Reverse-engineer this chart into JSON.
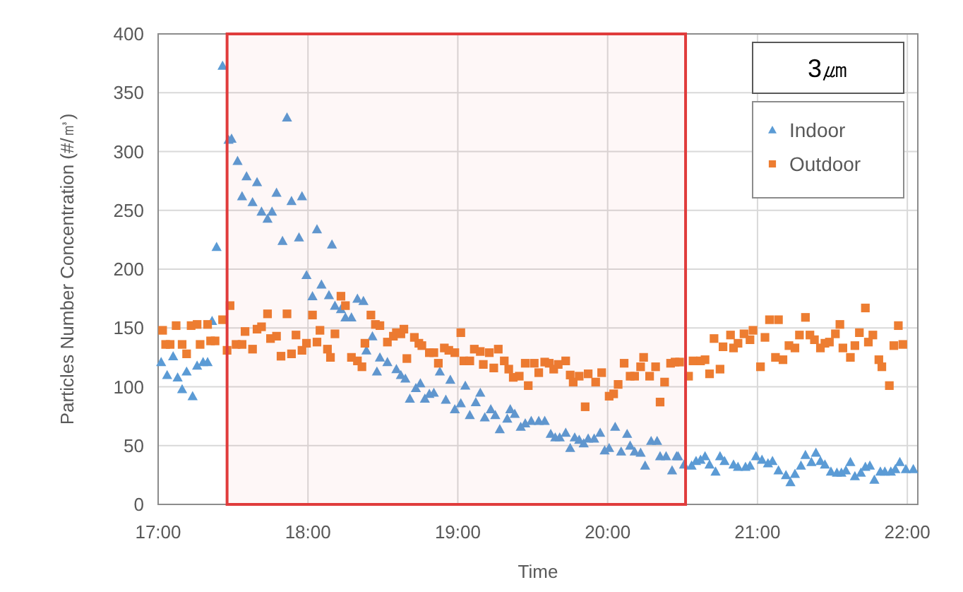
{
  "chart_data": {
    "type": "scatter",
    "xlabel": "Time",
    "ylabel": "Particles Number Concentration (#/㎥)",
    "legend_title": "3㎛",
    "legend": "top right",
    "grid": true,
    "xlim": [
      17,
      22.07
    ],
    "xticks": [
      {
        "value": 17,
        "label": "17:00"
      },
      {
        "value": 18,
        "label": "18:00"
      },
      {
        "value": 19,
        "label": "19:00"
      },
      {
        "value": 20,
        "label": "20:00"
      },
      {
        "value": 21,
        "label": "21:00"
      },
      {
        "value": 22,
        "label": "22:00"
      }
    ],
    "ylim": [
      0,
      400
    ],
    "yticks": [
      0,
      50,
      100,
      150,
      200,
      250,
      300,
      350,
      400
    ],
    "bands": [
      {
        "axis": "x",
        "from": 17.46,
        "to": 20.52,
        "color": "#e03c3c"
      }
    ],
    "series": [
      {
        "name": "Indoor",
        "color": "#5b9bd5",
        "marker": "triangle",
        "x": [
          17.02,
          17.06,
          17.1,
          17.13,
          17.16,
          17.19,
          17.23,
          17.26,
          17.3,
          17.33,
          17.36,
          17.39,
          17.43,
          17.47,
          17.49,
          17.53,
          17.56,
          17.59,
          17.63,
          17.66,
          17.69,
          17.73,
          17.76,
          17.79,
          17.83,
          17.86,
          17.89,
          17.94,
          17.96,
          17.99,
          18.03,
          18.06,
          18.09,
          18.14,
          18.16,
          18.18,
          18.22,
          18.25,
          18.29,
          18.33,
          18.37,
          18.39,
          18.43,
          18.46,
          18.48,
          18.53,
          18.59,
          18.62,
          18.65,
          18.68,
          18.72,
          18.75,
          18.78,
          18.81,
          18.84,
          18.88,
          18.92,
          18.95,
          18.98,
          19.02,
          19.05,
          19.08,
          19.12,
          19.15,
          19.18,
          19.22,
          19.25,
          19.28,
          19.33,
          19.35,
          19.38,
          19.42,
          19.45,
          19.49,
          19.54,
          19.58,
          19.62,
          19.65,
          19.68,
          19.72,
          19.75,
          19.78,
          19.81,
          19.84,
          19.87,
          19.91,
          19.95,
          19.98,
          20.01,
          20.05,
          20.09,
          20.13,
          20.15,
          20.18,
          20.22,
          20.25,
          20.29,
          20.33,
          20.35,
          20.39,
          20.43,
          20.46,
          20.47,
          20.51,
          20.56,
          20.59,
          20.62,
          20.65,
          20.68,
          20.72,
          20.75,
          20.78,
          20.84,
          20.87,
          20.92,
          20.95,
          20.99,
          21.03,
          21.07,
          21.1,
          21.14,
          21.19,
          21.22,
          21.25,
          21.29,
          21.32,
          21.36,
          21.39,
          21.42,
          21.45,
          21.49,
          21.53,
          21.56,
          21.59,
          21.62,
          21.65,
          21.69,
          21.72,
          21.75,
          21.78,
          21.82,
          21.85,
          21.89,
          21.92,
          21.95,
          21.99,
          22.04
        ],
        "values": [
          121,
          110,
          126,
          108,
          98,
          113,
          92,
          118,
          121,
          121,
          156,
          219,
          373,
          310,
          311,
          292,
          262,
          279,
          257,
          274,
          249,
          243,
          249,
          265,
          224,
          329,
          258,
          227,
          262,
          195,
          177,
          234,
          187,
          178,
          221,
          169,
          166,
          159,
          159,
          175,
          173,
          131,
          143,
          113,
          125,
          121,
          115,
          110,
          107,
          90,
          99,
          103,
          90,
          94,
          95,
          113,
          89,
          106,
          81,
          86,
          101,
          76,
          87,
          95,
          74,
          81,
          76,
          64,
          73,
          81,
          77,
          66,
          69,
          71,
          71,
          71,
          60,
          57,
          57,
          61,
          48,
          57,
          55,
          52,
          56,
          56,
          61,
          46,
          48,
          66,
          45,
          60,
          50,
          45,
          44,
          33,
          54,
          54,
          41,
          41,
          29,
          41,
          41,
          34,
          33,
          37,
          38,
          41,
          34,
          28,
          41,
          37,
          34,
          32,
          32,
          33,
          41,
          38,
          35,
          37,
          29,
          25,
          19,
          26,
          33,
          42,
          36,
          44,
          37,
          34,
          28,
          27,
          27,
          29,
          36,
          24,
          27,
          32,
          33,
          21,
          28,
          28,
          28,
          30,
          36,
          30,
          30
        ]
      },
      {
        "name": "Outdoor",
        "color": "#ed7d31",
        "marker": "square",
        "x": [
          17.03,
          17.05,
          17.08,
          17.12,
          17.16,
          17.19,
          17.22,
          17.26,
          17.28,
          17.33,
          17.35,
          17.38,
          17.43,
          17.46,
          17.48,
          17.52,
          17.56,
          17.58,
          17.63,
          17.66,
          17.69,
          17.73,
          17.75,
          17.79,
          17.82,
          17.86,
          17.89,
          17.92,
          17.96,
          17.99,
          18.03,
          18.06,
          18.08,
          18.13,
          18.15,
          18.18,
          18.22,
          18.25,
          18.29,
          18.33,
          18.36,
          18.38,
          18.42,
          18.45,
          18.48,
          18.53,
          18.57,
          18.59,
          18.62,
          18.64,
          18.66,
          18.71,
          18.74,
          18.76,
          18.81,
          18.84,
          18.87,
          18.91,
          18.94,
          18.98,
          19.02,
          19.04,
          19.08,
          19.11,
          19.15,
          19.17,
          19.21,
          19.24,
          19.27,
          19.31,
          19.34,
          19.37,
          19.41,
          19.45,
          19.47,
          19.51,
          19.54,
          19.58,
          19.61,
          19.64,
          19.67,
          19.72,
          19.75,
          19.77,
          19.81,
          19.85,
          19.87,
          19.92,
          19.96,
          20.01,
          20.04,
          20.07,
          20.11,
          20.15,
          20.18,
          20.22,
          20.24,
          20.28,
          20.32,
          20.35,
          20.38,
          20.42,
          20.45,
          20.48,
          20.54,
          20.57,
          20.62,
          20.65,
          20.68,
          20.71,
          20.75,
          20.77,
          20.82,
          20.84,
          20.87,
          20.91,
          20.95,
          20.97,
          21.02,
          21.05,
          21.08,
          21.12,
          21.14,
          21.17,
          21.21,
          21.25,
          21.28,
          21.32,
          21.35,
          21.38,
          21.42,
          21.45,
          21.48,
          21.52,
          21.55,
          21.57,
          21.62,
          21.65,
          21.68,
          21.72,
          21.74,
          21.77,
          21.81,
          21.83,
          21.88,
          21.91,
          21.94,
          21.97
        ],
        "values": [
          148,
          136,
          136,
          152,
          136,
          128,
          152,
          153,
          136,
          153,
          139,
          139,
          157,
          131,
          169,
          136,
          136,
          147,
          132,
          149,
          151,
          162,
          141,
          143,
          126,
          162,
          128,
          144,
          131,
          137,
          161,
          138,
          148,
          132,
          125,
          145,
          177,
          169,
          125,
          122,
          117,
          137,
          161,
          153,
          152,
          138,
          143,
          146,
          145,
          149,
          124,
          142,
          137,
          135,
          129,
          129,
          120,
          133,
          131,
          129,
          146,
          122,
          122,
          132,
          130,
          119,
          129,
          116,
          132,
          122,
          115,
          108,
          109,
          120,
          101,
          120,
          112,
          121,
          120,
          115,
          119,
          122,
          110,
          104,
          109,
          83,
          111,
          104,
          112,
          92,
          94,
          102,
          120,
          109,
          109,
          117,
          125,
          109,
          117,
          87,
          104,
          120,
          121,
          121,
          109,
          122,
          122,
          123,
          111,
          141,
          115,
          134,
          144,
          133,
          137,
          145,
          140,
          148,
          117,
          142,
          157,
          125,
          157,
          123,
          135,
          133,
          144,
          159,
          144,
          140,
          133,
          137,
          138,
          145,
          153,
          133,
          125,
          135,
          146,
          167,
          138,
          144,
          123,
          117,
          101,
          135,
          152,
          136
        ]
      }
    ]
  }
}
